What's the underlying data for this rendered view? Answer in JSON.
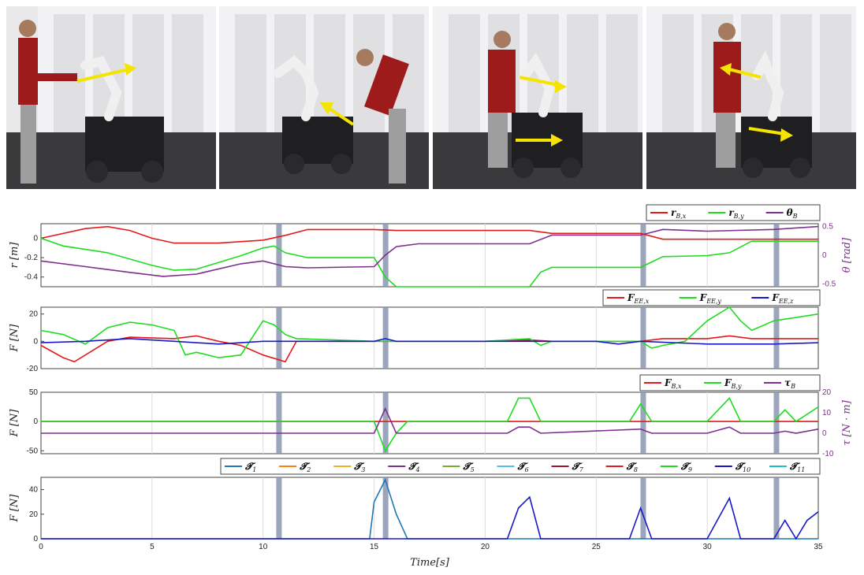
{
  "photos": [
    {
      "arrows": 1
    },
    {
      "arrows": 1
    },
    {
      "arrows": 2
    },
    {
      "arrows": 2
    }
  ],
  "colors": {
    "red": "#e41a1a",
    "green": "#1fdc1f",
    "purple": "#7e2f8e",
    "blue": "#1818c8",
    "teal": "#1f77b4",
    "highlight": "#8a96b0",
    "arrow": "#f5e400"
  },
  "chart_data": [
    {
      "type": "line",
      "xlim": [
        0,
        35
      ],
      "ylabel": "r [m]",
      "y2label": "θ [rad]",
      "ylim": [
        -0.5,
        0.15
      ],
      "yticks": [
        0,
        -0.2,
        -0.4
      ],
      "y2lim": [
        -0.55,
        0.55
      ],
      "y2ticks": [
        0.5,
        0,
        -0.5
      ],
      "legend": [
        "r_B,x",
        "r_B,y",
        "θ_B"
      ],
      "series": [
        {
          "name": "r_B,x",
          "color": "red",
          "axis": "left",
          "points": [
            [
              0,
              0
            ],
            [
              2,
              0.1
            ],
            [
              3,
              0.12
            ],
            [
              4,
              0.08
            ],
            [
              5,
              0
            ],
            [
              6,
              -0.05
            ],
            [
              8,
              -0.05
            ],
            [
              10,
              -0.02
            ],
            [
              11,
              0.03
            ],
            [
              12,
              0.09
            ],
            [
              15,
              0.09
            ],
            [
              16,
              0.08
            ],
            [
              20,
              0.08
            ],
            [
              22,
              0.08
            ],
            [
              23,
              0.05
            ],
            [
              27,
              0.05
            ],
            [
              28,
              -0.01
            ],
            [
              35,
              -0.01
            ]
          ]
        },
        {
          "name": "r_B,y",
          "color": "green",
          "axis": "left",
          "points": [
            [
              0,
              0
            ],
            [
              1,
              -0.08
            ],
            [
              3,
              -0.15
            ],
            [
              5,
              -0.28
            ],
            [
              6,
              -0.33
            ],
            [
              7,
              -0.32
            ],
            [
              9,
              -0.18
            ],
            [
              10,
              -0.1
            ],
            [
              10.5,
              -0.08
            ],
            [
              11,
              -0.15
            ],
            [
              12,
              -0.2
            ],
            [
              15,
              -0.2
            ],
            [
              15.5,
              -0.4
            ],
            [
              16,
              -0.5
            ],
            [
              22,
              -0.5
            ],
            [
              22.5,
              -0.35
            ],
            [
              23,
              -0.3
            ],
            [
              27,
              -0.3
            ],
            [
              28,
              -0.19
            ],
            [
              30,
              -0.18
            ],
            [
              31,
              -0.15
            ],
            [
              32,
              -0.03
            ],
            [
              35,
              -0.03
            ]
          ]
        },
        {
          "name": "θ_B",
          "color": "purple",
          "axis": "right",
          "points": [
            [
              0,
              -0.1
            ],
            [
              2,
              -0.2
            ],
            [
              4,
              -0.3
            ],
            [
              5.5,
              -0.37
            ],
            [
              7,
              -0.33
            ],
            [
              9,
              -0.15
            ],
            [
              10,
              -0.1
            ],
            [
              11,
              -0.2
            ],
            [
              12,
              -0.22
            ],
            [
              15,
              -0.2
            ],
            [
              15.5,
              0
            ],
            [
              16,
              0.15
            ],
            [
              17,
              0.2
            ],
            [
              22,
              0.2
            ],
            [
              23,
              0.35
            ],
            [
              27,
              0.35
            ],
            [
              28,
              0.45
            ],
            [
              30,
              0.42
            ],
            [
              33,
              0.45
            ],
            [
              35,
              0.5
            ]
          ]
        }
      ]
    },
    {
      "type": "line",
      "xlim": [
        0,
        35
      ],
      "ylabel": "F [N]",
      "ylim": [
        -20,
        25
      ],
      "yticks": [
        20,
        0,
        -20
      ],
      "legend": [
        "F_EE,x",
        "F_EE,y",
        "F_EE,z"
      ],
      "series": [
        {
          "name": "F_EE,x",
          "color": "red",
          "points": [
            [
              0,
              -3
            ],
            [
              1,
              -12
            ],
            [
              1.5,
              -15
            ],
            [
              2,
              -10
            ],
            [
              3,
              0
            ],
            [
              4,
              3
            ],
            [
              6,
              2
            ],
            [
              7,
              4
            ],
            [
              8,
              0
            ],
            [
              9,
              -3
            ],
            [
              10,
              -10
            ],
            [
              11,
              -15
            ],
            [
              11.5,
              0
            ],
            [
              15,
              0
            ],
            [
              20,
              0
            ],
            [
              22,
              1
            ],
            [
              23,
              0
            ],
            [
              27,
              0
            ],
            [
              28,
              2
            ],
            [
              30,
              2
            ],
            [
              31,
              4
            ],
            [
              32,
              2
            ],
            [
              35,
              2
            ]
          ]
        },
        {
          "name": "F_EE,y",
          "color": "green",
          "points": [
            [
              0,
              8
            ],
            [
              1,
              5
            ],
            [
              2,
              -2
            ],
            [
              3,
              10
            ],
            [
              4,
              14
            ],
            [
              5,
              12
            ],
            [
              6,
              8
            ],
            [
              6.5,
              -10
            ],
            [
              7,
              -8
            ],
            [
              8,
              -12
            ],
            [
              9,
              -10
            ],
            [
              10,
              15
            ],
            [
              10.5,
              12
            ],
            [
              11,
              5
            ],
            [
              11.5,
              2
            ],
            [
              15,
              0
            ],
            [
              20,
              0
            ],
            [
              22,
              2
            ],
            [
              22.5,
              -3
            ],
            [
              23,
              0
            ],
            [
              27,
              0
            ],
            [
              27.5,
              -5
            ],
            [
              28,
              -3
            ],
            [
              29,
              0
            ],
            [
              30,
              15
            ],
            [
              31,
              25
            ],
            [
              31.5,
              15
            ],
            [
              32,
              8
            ],
            [
              33,
              15
            ],
            [
              35,
              20
            ]
          ]
        },
        {
          "name": "F_EE,z",
          "color": "blue",
          "points": [
            [
              0,
              -1
            ],
            [
              2,
              0
            ],
            [
              4,
              2
            ],
            [
              6,
              0
            ],
            [
              8,
              -2
            ],
            [
              10,
              0
            ],
            [
              12,
              0
            ],
            [
              15,
              0
            ],
            [
              15.5,
              2
            ],
            [
              16,
              0
            ],
            [
              25,
              0
            ],
            [
              26,
              -2
            ],
            [
              27,
              0
            ],
            [
              30,
              -2
            ],
            [
              33,
              -2
            ],
            [
              35,
              -1
            ]
          ]
        }
      ]
    },
    {
      "type": "line",
      "xlim": [
        0,
        35
      ],
      "ylabel": "F [N]",
      "y2label": "τ [N · m]",
      "ylim": [
        -55,
        50
      ],
      "yticks": [
        50,
        0,
        -50
      ],
      "y2lim": [
        -10,
        20
      ],
      "y2ticks": [
        20,
        10,
        0,
        -10
      ],
      "legend": [
        "F_B,x",
        "F_B,y",
        "τ_B"
      ],
      "series": [
        {
          "name": "F_B,x",
          "color": "red",
          "points": [
            [
              0,
              0
            ],
            [
              35,
              0
            ]
          ]
        },
        {
          "name": "F_B,y",
          "color": "green",
          "points": [
            [
              0,
              0
            ],
            [
              15,
              0
            ],
            [
              15.5,
              -50
            ],
            [
              16,
              -20
            ],
            [
              16.5,
              0
            ],
            [
              21,
              0
            ],
            [
              21.5,
              40
            ],
            [
              22,
              40
            ],
            [
              22.5,
              0
            ],
            [
              26.5,
              0
            ],
            [
              27,
              30
            ],
            [
              27.5,
              0
            ],
            [
              30,
              0
            ],
            [
              31,
              40
            ],
            [
              31.5,
              0
            ],
            [
              33,
              0
            ],
            [
              33.5,
              20
            ],
            [
              34,
              0
            ],
            [
              35,
              25
            ]
          ]
        },
        {
          "name": "τ_B",
          "color": "purple",
          "axis": "right",
          "points": [
            [
              0,
              0
            ],
            [
              15,
              0
            ],
            [
              15.5,
              12
            ],
            [
              16,
              0
            ],
            [
              21,
              0
            ],
            [
              21.5,
              3
            ],
            [
              22,
              3
            ],
            [
              22.5,
              0
            ],
            [
              27,
              2
            ],
            [
              27.5,
              0
            ],
            [
              30,
              0
            ],
            [
              31,
              3
            ],
            [
              31.5,
              0
            ],
            [
              33,
              0
            ],
            [
              33.5,
              1
            ],
            [
              34,
              0
            ],
            [
              35,
              2
            ]
          ]
        }
      ]
    },
    {
      "type": "line",
      "xlim": [
        0,
        35
      ],
      "xticks": [
        0,
        5,
        10,
        15,
        20,
        25,
        30,
        35
      ],
      "xlabel": "Time[s]",
      "ylabel": "F [N]",
      "ylim": [
        0,
        50
      ],
      "yticks": [
        40,
        20,
        0
      ],
      "legend": [
        "T_1",
        "T_2",
        "T_3",
        "T_4",
        "T_5",
        "T_6",
        "T_7",
        "T_8",
        "T_9",
        "T_10",
        "T_11"
      ],
      "series": [
        {
          "name": "T_1",
          "color": "teal",
          "points": [
            [
              0,
              0
            ],
            [
              14.8,
              0
            ],
            [
              15,
              30
            ],
            [
              15.5,
              48
            ],
            [
              16,
              20
            ],
            [
              16.5,
              0
            ],
            [
              35,
              0
            ]
          ]
        },
        {
          "name": "T_10",
          "color": "blue",
          "points": [
            [
              0,
              0
            ],
            [
              21,
              0
            ],
            [
              21.5,
              25
            ],
            [
              22,
              34
            ],
            [
              22.5,
              0
            ],
            [
              26.5,
              0
            ],
            [
              27,
              25
            ],
            [
              27.5,
              0
            ],
            [
              30,
              0
            ],
            [
              31,
              33
            ],
            [
              31.5,
              0
            ],
            [
              33,
              0
            ],
            [
              33.5,
              15
            ],
            [
              34,
              0
            ],
            [
              34.5,
              15
            ],
            [
              35,
              22
            ]
          ]
        }
      ]
    }
  ],
  "highlights_s": [
    10.7,
    15.5,
    27.1,
    33.1
  ]
}
